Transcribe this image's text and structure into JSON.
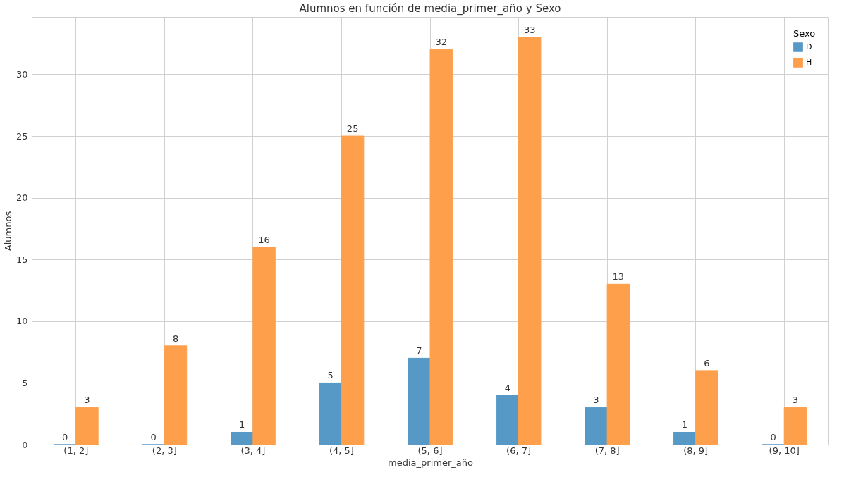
{
  "chart_data": {
    "type": "bar",
    "title": "Alumnos en función de media_primer_año y Sexo",
    "xlabel": "media_primer_año",
    "ylabel": "Alumnos",
    "legend_title": "Sexo",
    "categories": [
      "(1, 2]",
      "(2, 3]",
      "(3, 4]",
      "(4, 5]",
      "(5, 6]",
      "(6, 7]",
      "(7, 8]",
      "(8, 9]",
      "(9, 10]"
    ],
    "series": [
      {
        "name": "D",
        "color": "#5799c6",
        "values": [
          0,
          0,
          1,
          5,
          7,
          4,
          3,
          1,
          0
        ]
      },
      {
        "name": "H",
        "color": "#fe9f4b",
        "values": [
          3,
          8,
          16,
          25,
          32,
          33,
          13,
          6,
          3
        ]
      }
    ],
    "ylim": [
      0,
      34.65
    ],
    "yticks": [
      0,
      5,
      10,
      15,
      20,
      25,
      30
    ],
    "grid": true,
    "legend": "top right",
    "data_labels": true
  }
}
